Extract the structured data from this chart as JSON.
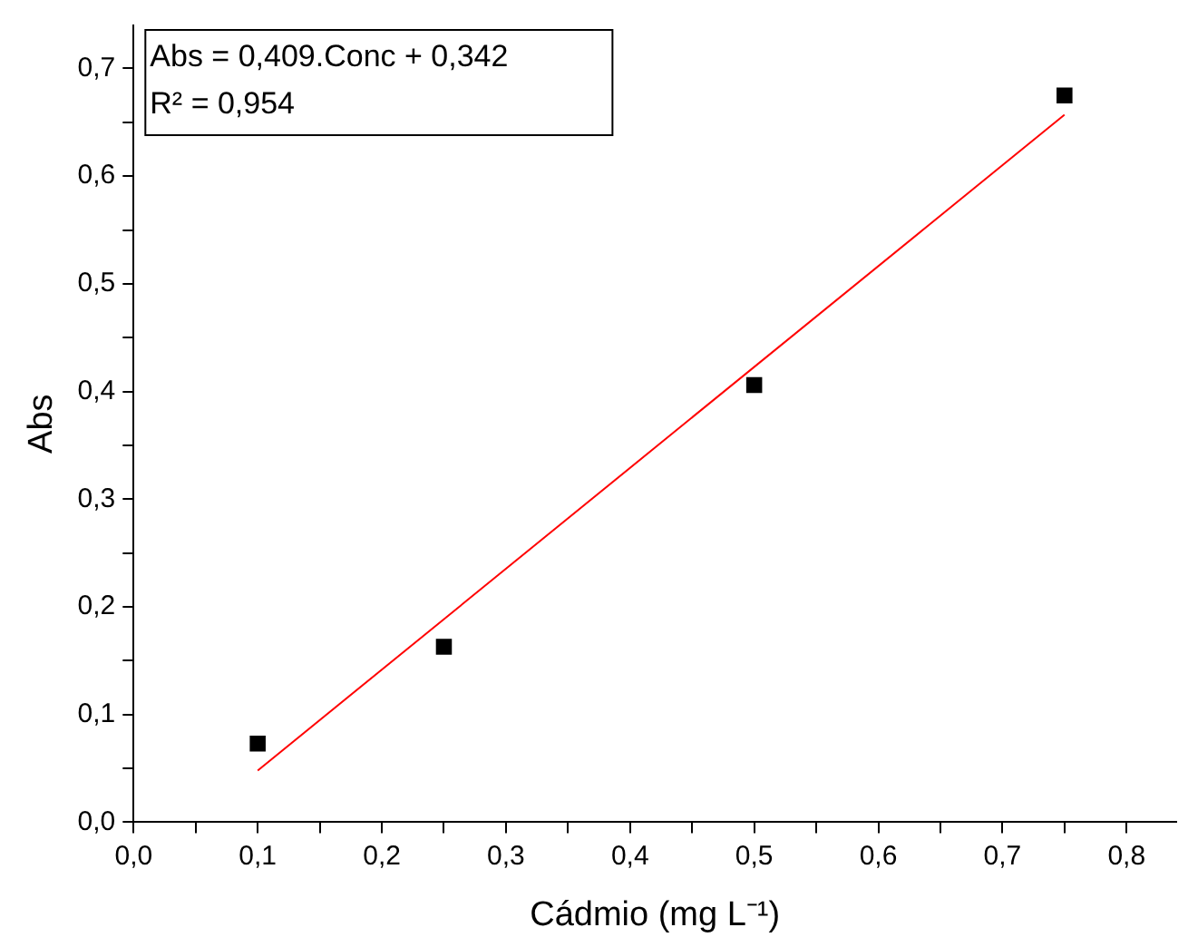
{
  "chart_data": {
    "type": "scatter",
    "xlabel": "Cádmio (mg L⁻¹)",
    "ylabel": "Abs",
    "annotations": [
      "Abs = 0,409.Conc + 0,342",
      "R² = 0,954"
    ],
    "x": [
      0.1,
      0.25,
      0.5,
      0.75
    ],
    "series": [
      {
        "type": "scatter",
        "color": "#000000",
        "values": [
          0.073,
          0.163,
          0.406,
          0.675
        ],
        "marker": "square"
      },
      {
        "type": "line",
        "color": "#ff0000",
        "x": [
          0.1,
          0.75
        ],
        "values": [
          0.048,
          0.657
        ],
        "marker": "none",
        "line_style": "solid"
      }
    ],
    "xlim": [
      0,
      0.84
    ],
    "ylim": [
      0,
      0.74
    ],
    "xticks": [
      {
        "value": 0,
        "label": "0,0"
      },
      {
        "value": 0.05,
        "label": null
      },
      {
        "value": 0.1,
        "label": "0,1"
      },
      {
        "value": 0.15,
        "label": null
      },
      {
        "value": 0.2,
        "label": "0,2"
      },
      {
        "value": 0.25,
        "label": null
      },
      {
        "value": 0.3,
        "label": "0,3"
      },
      {
        "value": 0.35,
        "label": null
      },
      {
        "value": 0.4,
        "label": "0,4"
      },
      {
        "value": 0.45,
        "label": null
      },
      {
        "value": 0.5,
        "label": "0,5"
      },
      {
        "value": 0.55,
        "label": null
      },
      {
        "value": 0.6,
        "label": "0,6"
      },
      {
        "value": 0.65,
        "label": null
      },
      {
        "value": 0.7,
        "label": "0,7"
      },
      {
        "value": 0.75,
        "label": null
      },
      {
        "value": 0.8,
        "label": "0,8"
      }
    ],
    "yticks": [
      {
        "value": 0,
        "label": "0,0"
      },
      {
        "value": 0.05,
        "label": null
      },
      {
        "value": 0.1,
        "label": "0,1"
      },
      {
        "value": 0.15,
        "label": null
      },
      {
        "value": 0.2,
        "label": "0,2"
      },
      {
        "value": 0.25,
        "label": null
      },
      {
        "value": 0.3,
        "label": "0,3"
      },
      {
        "value": 0.35,
        "label": null
      },
      {
        "value": 0.4,
        "label": "0,4"
      },
      {
        "value": 0.45,
        "label": null
      },
      {
        "value": 0.5,
        "label": "0,5"
      },
      {
        "value": 0.55,
        "label": null
      },
      {
        "value": 0.6,
        "label": "0,6"
      },
      {
        "value": 0.65,
        "label": null
      },
      {
        "value": 0.7,
        "label": "0,7"
      }
    ],
    "grid": false,
    "legend": false
  }
}
